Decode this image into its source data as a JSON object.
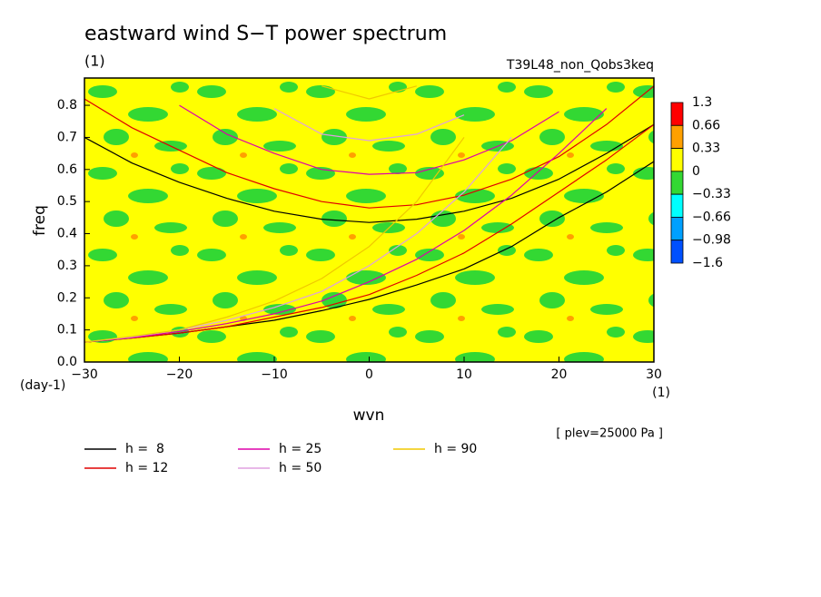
{
  "chart_data": {
    "type": "contour-line",
    "title": "eastward wind S−T power spectrum",
    "subtitle": "(1)",
    "run_label": "T39L48_non_Qobs3keq",
    "y_label": "freq",
    "y_unit": "(day-1)",
    "x_label": "wvn",
    "x_unit": "(1)",
    "annotation": "[ plev=25000 Pa ]",
    "xlim": [
      -30,
      30
    ],
    "xticks": [
      {
        "value": -30,
        "label": "−30"
      },
      {
        "value": -20,
        "label": "−20"
      },
      {
        "value": -10,
        "label": "−10"
      },
      0,
      10,
      20,
      30
    ],
    "ylim": [
      0,
      0.885
    ],
    "yticks": [
      {
        "value": 0,
        "label": "0.0"
      },
      0.1,
      0.2,
      0.3,
      0.4,
      0.5,
      0.6,
      0.7,
      0.8
    ],
    "colorbar": {
      "levels": [
        1.3,
        0.66,
        0.33,
        0,
        {
          "value": -0.33,
          "label": "−0.33"
        },
        {
          "value": -0.66,
          "label": "−0.66"
        },
        {
          "value": -0.98,
          "label": "−0.98"
        },
        {
          "value": -1.6,
          "label": "−1.6"
        }
      ],
      "colors": [
        "#ff0000",
        "#ffa000",
        "#ffff00",
        "#33d833",
        "#00ffff",
        "#00a0ff",
        "#0050ff"
      ]
    },
    "x": [
      -30,
      -25,
      -20,
      -15,
      -10,
      -5,
      0,
      5,
      10,
      15,
      20,
      25,
      30
    ],
    "series": [
      {
        "name": "h =  8",
        "color": "#000000",
        "curves": [
          [
            0.062,
            0.075,
            0.09,
            0.11,
            0.13,
            0.16,
            0.195,
            0.24,
            0.29,
            0.36,
            0.45,
            0.53,
            0.625
          ],
          [
            0.7,
            0.62,
            0.56,
            0.51,
            0.47,
            0.445,
            0.435,
            0.445,
            0.47,
            0.51,
            0.57,
            0.65,
            0.74
          ]
        ]
      },
      {
        "name": "h = 12",
        "color": "#e00000",
        "curves": [
          [
            0.062,
            0.075,
            0.09,
            0.11,
            0.14,
            0.17,
            0.21,
            0.27,
            0.34,
            0.43,
            0.53,
            0.63,
            0.74
          ],
          [
            0.82,
            0.73,
            0.66,
            0.59,
            0.54,
            0.5,
            0.48,
            0.49,
            0.52,
            0.57,
            0.64,
            0.74,
            0.86
          ]
        ]
      },
      {
        "name": "h = 25",
        "color": "#dd00aa",
        "curves": [
          [
            0.062,
            0.076,
            0.095,
            0.12,
            0.15,
            0.19,
            0.25,
            0.32,
            0.41,
            0.52,
            0.65,
            0.79,
            null
          ],
          [
            null,
            null,
            0.8,
            0.71,
            0.65,
            0.6,
            0.585,
            0.59,
            0.63,
            0.69,
            0.78,
            null,
            null
          ]
        ]
      },
      {
        "name": "h = 50",
        "color": "#e0a0e0",
        "curves": [
          [
            0.062,
            0.078,
            0.1,
            0.13,
            0.17,
            0.22,
            0.3,
            0.4,
            0.53,
            0.7,
            null,
            null,
            null
          ],
          [
            null,
            null,
            null,
            null,
            0.79,
            0.71,
            0.69,
            0.71,
            0.77,
            null,
            null,
            null,
            null
          ]
        ]
      },
      {
        "name": "h = 90",
        "color": "#f0c800",
        "curves": [
          [
            0.062,
            0.08,
            0.1,
            0.14,
            0.19,
            0.26,
            0.36,
            0.5,
            0.7,
            null,
            null,
            null,
            null
          ],
          [
            null,
            null,
            null,
            null,
            null,
            0.86,
            0.82,
            0.86,
            null,
            null,
            null,
            null,
            null
          ]
        ]
      }
    ]
  }
}
